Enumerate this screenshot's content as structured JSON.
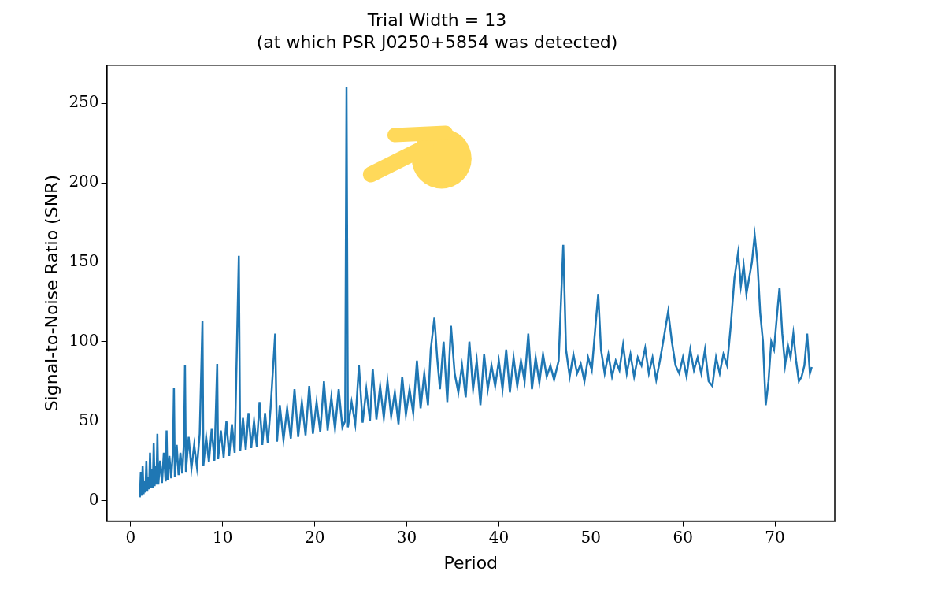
{
  "chart_data": {
    "type": "line",
    "title": "Trial Width = 13",
    "subtitle": "(at which PSR J0250+5854 was detected)",
    "x_label": "Period",
    "y_label": "Signal-to-Noise Ratio (SNR)",
    "color": "#1f77b4",
    "grid": false,
    "xlim": [
      -2.6,
      76.5
    ],
    "xticks": [
      0,
      10,
      20,
      30,
      40,
      50,
      60,
      70
    ],
    "ylim": [
      -13,
      274
    ],
    "yticks": [
      0,
      50,
      100,
      150,
      200,
      250
    ],
    "x": [
      1.0,
      1.1,
      1.2,
      1.3,
      1.4,
      1.5,
      1.6,
      1.7,
      1.8,
      1.9,
      2.0,
      2.1,
      2.2,
      2.3,
      2.4,
      2.5,
      2.6,
      2.7,
      2.8,
      2.9,
      3.0,
      3.2,
      3.4,
      3.6,
      3.8,
      3.9,
      4.0,
      4.2,
      4.4,
      4.6,
      4.7,
      4.8,
      5.0,
      5.2,
      5.4,
      5.6,
      5.8,
      5.9,
      6.0,
      6.3,
      6.6,
      6.9,
      7.2,
      7.5,
      7.8,
      7.9,
      8.2,
      8.5,
      8.8,
      9.1,
      9.4,
      9.5,
      9.8,
      10.1,
      10.4,
      10.7,
      11.0,
      11.3,
      11.75,
      11.9,
      12.2,
      12.5,
      12.8,
      13.1,
      13.4,
      13.7,
      14.0,
      14.3,
      14.6,
      14.9,
      15.2,
      15.7,
      15.9,
      16.2,
      16.6,
      17.0,
      17.4,
      17.8,
      18.2,
      18.6,
      19.0,
      19.4,
      19.8,
      20.2,
      20.6,
      21.0,
      21.4,
      21.8,
      22.2,
      22.6,
      23.0,
      23.3,
      23.45,
      23.6,
      24.0,
      24.4,
      24.8,
      25.2,
      25.6,
      26.0,
      26.3,
      26.7,
      27.1,
      27.5,
      27.9,
      28.3,
      28.7,
      29.1,
      29.5,
      29.9,
      30.3,
      30.7,
      31.1,
      31.5,
      31.9,
      32.3,
      32.6,
      33.0,
      33.3,
      33.6,
      34.0,
      34.4,
      34.8,
      35.2,
      35.6,
      36.0,
      36.4,
      36.8,
      37.2,
      37.6,
      38.0,
      38.4,
      38.8,
      39.2,
      39.6,
      40.0,
      40.4,
      40.8,
      41.2,
      41.6,
      42.0,
      42.4,
      42.8,
      43.2,
      43.6,
      44.0,
      44.4,
      44.8,
      45.2,
      45.6,
      46.0,
      46.5,
      47.0,
      47.3,
      47.7,
      48.1,
      48.5,
      48.9,
      49.3,
      49.7,
      50.1,
      50.5,
      50.8,
      51.1,
      51.5,
      51.9,
      52.3,
      52.7,
      53.1,
      53.5,
      53.9,
      54.3,
      54.7,
      55.1,
      55.5,
      55.9,
      56.3,
      56.7,
      57.1,
      57.5,
      58.0,
      58.4,
      58.8,
      59.2,
      59.6,
      60.0,
      60.4,
      60.8,
      61.2,
      61.6,
      62.0,
      62.4,
      62.8,
      63.2,
      63.6,
      64.0,
      64.4,
      64.8,
      65.2,
      65.6,
      66.0,
      66.3,
      66.6,
      66.9,
      67.2,
      67.5,
      67.8,
      68.1,
      68.4,
      68.7,
      69.0,
      69.3,
      69.6,
      69.9,
      70.2,
      70.5,
      70.8,
      71.1,
      71.4,
      71.7,
      72.0,
      72.3,
      72.6,
      72.9,
      73.2,
      73.5,
      73.8,
      74.0
    ],
    "values": [
      2,
      18,
      3,
      22,
      4,
      12,
      5,
      25,
      6,
      15,
      7,
      30,
      8,
      20,
      8,
      36,
      9,
      22,
      10,
      42,
      10,
      25,
      11,
      30,
      12,
      44,
      13,
      28,
      14,
      32,
      71,
      15,
      35,
      16,
      30,
      17,
      38,
      85,
      18,
      40,
      20,
      35,
      21,
      42,
      113,
      22,
      40,
      24,
      45,
      25,
      86,
      26,
      44,
      27,
      50,
      28,
      48,
      30,
      154,
      31,
      52,
      32,
      55,
      33,
      50,
      34,
      62,
      35,
      55,
      36,
      58,
      105,
      37,
      60,
      38,
      58,
      39,
      70,
      40,
      62,
      41,
      72,
      42,
      62,
      43,
      75,
      44,
      65,
      45,
      70,
      46,
      50,
      260,
      46,
      62,
      48,
      85,
      49,
      70,
      50,
      83,
      51,
      72,
      52,
      75,
      53,
      68,
      48,
      78,
      54,
      70,
      55,
      88,
      58,
      80,
      60,
      95,
      115,
      90,
      70,
      100,
      62,
      110,
      80,
      68,
      85,
      65,
      100,
      70,
      88,
      60,
      92,
      70,
      85,
      72,
      88,
      70,
      95,
      68,
      90,
      72,
      88,
      75,
      105,
      70,
      90,
      74,
      92,
      78,
      85,
      76,
      88,
      161,
      95,
      78,
      92,
      80,
      86,
      75,
      90,
      82,
      110,
      130,
      95,
      80,
      92,
      78,
      88,
      82,
      98,
      80,
      92,
      78,
      90,
      85,
      96,
      80,
      90,
      76,
      88,
      105,
      119,
      100,
      85,
      80,
      90,
      78,
      95,
      82,
      90,
      80,
      95,
      75,
      72,
      90,
      80,
      92,
      85,
      110,
      140,
      156,
      135,
      148,
      130,
      140,
      150,
      167,
      150,
      118,
      100,
      60,
      75,
      100,
      95,
      115,
      134,
      105,
      85,
      98,
      90,
      105,
      88,
      75,
      78,
      85,
      105,
      80,
      84
    ]
  }
}
